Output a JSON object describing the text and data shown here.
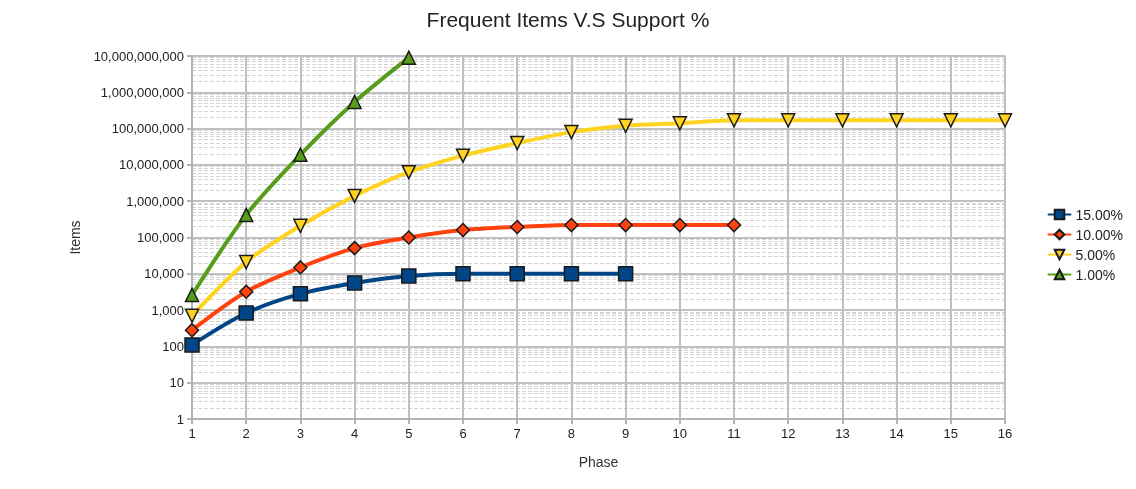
{
  "chart_data": {
    "type": "line",
    "title": "Frequent Items V.S Support %",
    "xlabel": "Phase",
    "ylabel": "Items",
    "x": [
      1,
      2,
      3,
      4,
      5,
      6,
      7,
      8,
      9,
      10,
      11,
      12,
      13,
      14,
      15,
      16
    ],
    "series": [
      {
        "name": "15.00%",
        "color": "#004586",
        "marker": "square",
        "values": [
          110,
          830,
          2800,
          5600,
          8700,
          10000,
          10000,
          10000,
          10000,
          null,
          null,
          null,
          null,
          null,
          null,
          null
        ]
      },
      {
        "name": "10.00%",
        "color": "#ff420e",
        "marker": "diamond",
        "values": [
          280,
          3200,
          15000,
          51000,
          100000,
          160000,
          195000,
          220000,
          220000,
          220000,
          220000,
          null,
          null,
          null,
          null,
          null
        ]
      },
      {
        "name": "5.00%",
        "color": "#ffd320",
        "marker": "triangle-down",
        "values": [
          700,
          21000,
          210000,
          1400000,
          6300000,
          18000000,
          40000000,
          80000000,
          120000000,
          140000000,
          170000000,
          170000000,
          170000000,
          170000000,
          170000000,
          170000000
        ]
      },
      {
        "name": "1.00%",
        "color": "#579d1c",
        "marker": "triangle",
        "values": [
          2600,
          420000,
          19000000,
          540000000,
          9000000000,
          null,
          null,
          null,
          null,
          null,
          null,
          null,
          null,
          null,
          null,
          null
        ]
      }
    ],
    "log": "y",
    "xlim": [
      1,
      16
    ],
    "xticks": [
      1,
      2,
      3,
      4,
      5,
      6,
      7,
      8,
      9,
      10,
      11,
      12,
      13,
      14,
      15,
      16
    ],
    "ylim": [
      1,
      10000000000
    ],
    "yticks": [
      1,
      10,
      100,
      {
        "value": 1000,
        "label": "1,000"
      },
      {
        "value": 10000,
        "label": "10,000"
      },
      {
        "value": 100000,
        "label": "100,000"
      },
      {
        "value": 1000000,
        "label": "1,000,000"
      },
      {
        "value": 10000000,
        "label": "10,000,000"
      },
      {
        "value": 100000000,
        "label": "100,000,000"
      },
      {
        "value": 1000000000,
        "label": "1,000,000,000"
      },
      {
        "value": 10000000000,
        "label": "10,000,000,000"
      }
    ],
    "grid": true,
    "legend": "right",
    "line_style": "solid"
  }
}
